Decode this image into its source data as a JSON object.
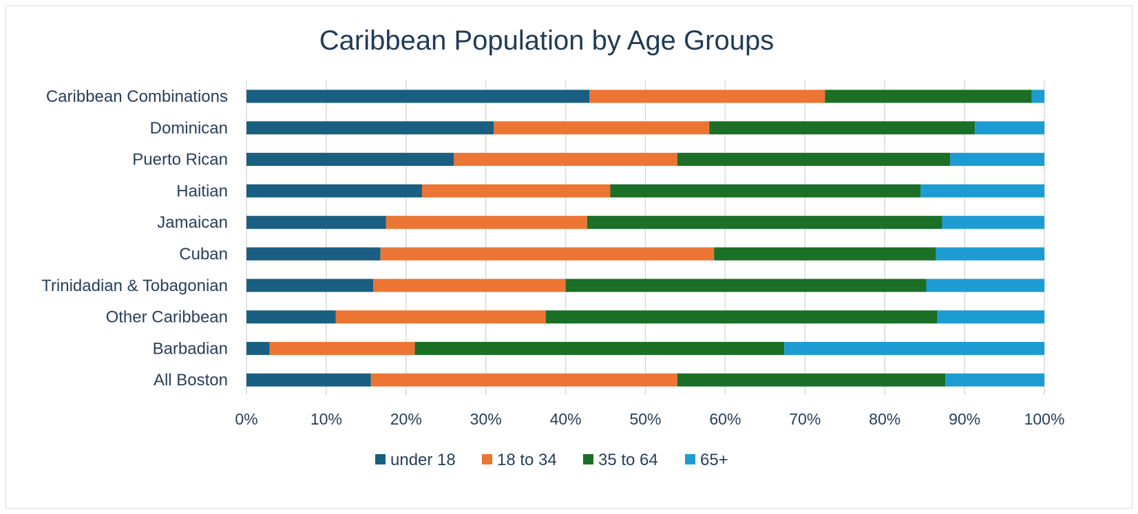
{
  "chart_data": {
    "type": "bar",
    "orientation": "horizontal",
    "stacked": "percent",
    "title": "Caribbean Population by Age Groups",
    "xlabel": "",
    "ylabel": "",
    "xlim": [
      0,
      100
    ],
    "x_ticks": [
      "0%",
      "10%",
      "20%",
      "30%",
      "40%",
      "50%",
      "60%",
      "70%",
      "80%",
      "90%",
      "100%"
    ],
    "grid": "vertical",
    "legend_position": "bottom",
    "categories": [
      "Caribbean Combinations",
      "Dominican",
      "Puerto Rican",
      "Haitian",
      "Jamaican",
      "Cuban",
      "Trinidadian & Tobagonian",
      "Other Caribbean",
      "Barbadian",
      "All Boston"
    ],
    "series": [
      {
        "name": "under 18",
        "color": "#1a5f82",
        "values": [
          43,
          31,
          26,
          22,
          17.5,
          16.8,
          15.9,
          11.2,
          2.9,
          15.6
        ]
      },
      {
        "name": "18 to 34",
        "color": "#ec7533",
        "values": [
          29.5,
          27,
          28,
          23.6,
          25.2,
          41.8,
          24.1,
          26.3,
          18.2,
          38.4
        ]
      },
      {
        "name": "35 to 64",
        "color": "#1b6f26",
        "values": [
          25.9,
          33.3,
          34.2,
          38.9,
          44.5,
          27.8,
          45.2,
          49.1,
          46.3,
          33.6
        ]
      },
      {
        "name": "65+",
        "color": "#1d9cd3",
        "values": [
          1.6,
          8.7,
          11.8,
          15.5,
          12.8,
          13.6,
          14.8,
          13.4,
          32.6,
          12.4
        ]
      }
    ]
  }
}
